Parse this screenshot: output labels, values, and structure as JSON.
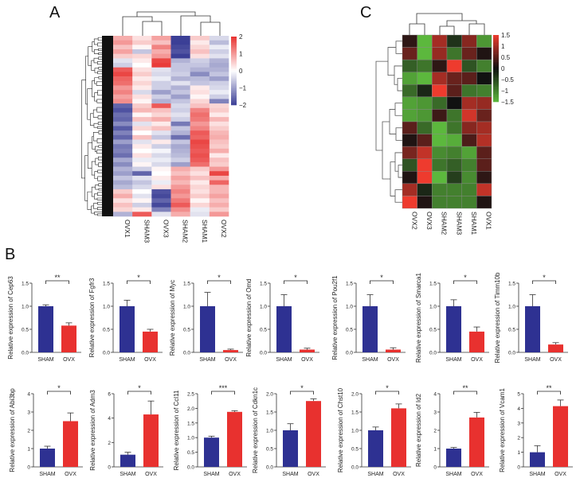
{
  "panels": {
    "a": "A",
    "b": "B",
    "c": "C"
  },
  "colors": {
    "heatmap_a_low": "#3b3f96",
    "heatmap_a_mid": "#ffffff",
    "heatmap_a_high": "#e8312f",
    "heatmap_c_low": "#5cb83d",
    "heatmap_c_mid": "#111111",
    "heatmap_c_high": "#ee3b2e",
    "sham_bar": "#2e3192",
    "ovx_bar": "#e8312f"
  },
  "chart_data": [
    {
      "type": "heatmap",
      "panel": "A",
      "columns": [
        "OVX1",
        "SHAM3",
        "OVX3",
        "SHAM2",
        "SHAM1",
        "OVX2"
      ],
      "colorbar_ticks": [
        2,
        1,
        0,
        -1,
        -2
      ],
      "range": [
        -2,
        2
      ],
      "row_dendrogram": true,
      "column_dendrogram": true,
      "values": [
        [
          0.8,
          0.3,
          0.9,
          -2,
          0.5,
          -0.4
        ],
        [
          1.0,
          0.5,
          0.6,
          -2,
          0.2,
          -0.7
        ],
        [
          0.6,
          0.1,
          1.2,
          -1.9,
          0.4,
          -0.2
        ],
        [
          0.9,
          -0.6,
          0.8,
          -1.8,
          0.6,
          -0.5
        ],
        [
          0.5,
          0.4,
          1.0,
          -2,
          0.3,
          -0.3
        ],
        [
          -0.3,
          0.2,
          1.8,
          -0.8,
          -0.5,
          -0.8
        ],
        [
          -0.5,
          0.0,
          1.9,
          -0.6,
          -0.6,
          -0.9
        ],
        [
          1.6,
          0.3,
          -0.3,
          -0.6,
          -0.8,
          -0.8
        ],
        [
          1.8,
          0.5,
          -0.4,
          -0.5,
          -1.2,
          -0.6
        ],
        [
          1.5,
          0.2,
          -0.2,
          -0.8,
          -0.7,
          -1.0
        ],
        [
          1.4,
          0.4,
          -0.5,
          -0.3,
          -0.6,
          -0.5
        ],
        [
          1.0,
          0.2,
          -0.5,
          -0.8,
          0.2,
          -0.4
        ],
        [
          1.2,
          -0.4,
          -1.0,
          -0.6,
          0.3,
          -0.2
        ],
        [
          0.9,
          0.3,
          -0.5,
          -1.0,
          0.1,
          -0.5
        ],
        [
          1.1,
          0.1,
          -0.8,
          -0.6,
          0.4,
          -1.3
        ],
        [
          -1.6,
          0.5,
          1.6,
          -0.4,
          0.6,
          0.4
        ],
        [
          -1.8,
          0.7,
          0.6,
          -0.5,
          1.2,
          0.5
        ],
        [
          -1.5,
          0.1,
          0.4,
          -0.3,
          1.4,
          0.2
        ],
        [
          -1.6,
          0.6,
          0.8,
          -0.5,
          1.3,
          0.7
        ],
        [
          -1.2,
          -0.3,
          0.2,
          -1.4,
          1.0,
          0.3
        ],
        [
          -1.7,
          0.4,
          0.6,
          -0.6,
          1.2,
          0.5
        ],
        [
          -1.3,
          0.0,
          -0.3,
          -0.8,
          1.6,
          0.7
        ],
        [
          -1.6,
          0.6,
          -0.6,
          -1.5,
          1.5,
          0.8
        ],
        [
          -1.0,
          -0.3,
          0.2,
          -0.6,
          1.8,
          0.6
        ],
        [
          -1.4,
          0.2,
          -0.5,
          -0.9,
          1.7,
          0.5
        ],
        [
          -1.3,
          0.0,
          -0.1,
          -0.8,
          1.6,
          0.8
        ],
        [
          -1.5,
          0.3,
          -0.4,
          -0.7,
          1.7,
          0.2
        ],
        [
          -0.9,
          -0.2,
          -0.2,
          -0.5,
          1.6,
          0.6
        ],
        [
          -1.2,
          0.1,
          -0.4,
          -1.0,
          1.4,
          0.5
        ],
        [
          -0.8,
          -0.5,
          0.1,
          0.8,
          0.5,
          1.0
        ],
        [
          -1.0,
          -1.6,
          0.0,
          0.6,
          0.3,
          1.8
        ],
        [
          -0.6,
          -0.3,
          0.2,
          0.9,
          0.6,
          0.8
        ],
        [
          -0.9,
          -0.6,
          -0.2,
          0.7,
          0.2,
          1.5
        ],
        [
          -0.7,
          -0.4,
          0.3,
          1.0,
          0.4,
          0.7
        ],
        [
          0.5,
          0.0,
          -1.8,
          1.2,
          0.3,
          0.7
        ],
        [
          0.8,
          -0.3,
          -1.9,
          1.0,
          0.5,
          0.9
        ],
        [
          0.3,
          0.1,
          -1.6,
          1.3,
          0.1,
          0.6
        ],
        [
          0.6,
          -0.5,
          -1.9,
          1.6,
          0.4,
          0.8
        ],
        [
          0.4,
          0.2,
          -1.3,
          1.1,
          -0.2,
          0.5
        ],
        [
          -0.8,
          1.6,
          -0.3,
          0.8,
          -0.3,
          1.0
        ]
      ]
    },
    {
      "type": "heatmap",
      "panel": "C",
      "columns": [
        "OVX2",
        "OVX3",
        "SHAM2",
        "SHAM3",
        "SHAM1",
        "OVX1"
      ],
      "colorbar_ticks": [
        1.5,
        1,
        0.5,
        0,
        -0.5,
        -1,
        -1.5
      ],
      "range": [
        -1.5,
        1.5
      ],
      "row_dendrogram": true,
      "column_dendrogram": true,
      "values": [
        [
          0.2,
          -1.6,
          1.0,
          -0.3,
          0.8,
          -1.2
        ],
        [
          0.6,
          -1.7,
          0.9,
          -0.9,
          0.6,
          0.1
        ],
        [
          -0.7,
          -0.9,
          0.2,
          1.7,
          -0.6,
          -1.0
        ],
        [
          -1.3,
          -1.6,
          1.0,
          0.6,
          0.5,
          0.0
        ],
        [
          -0.8,
          -0.2,
          1.6,
          0.5,
          -0.9,
          -1.0
        ],
        [
          -1.3,
          -1.2,
          -0.8,
          0.0,
          1.0,
          0.9
        ],
        [
          -1.3,
          -1.2,
          0.3,
          -0.9,
          1.3,
          0.6
        ],
        [
          0.5,
          -0.8,
          -1.6,
          -0.9,
          0.8,
          1.0
        ],
        [
          0.1,
          0.5,
          -1.5,
          -1.4,
          0.4,
          1.1
        ],
        [
          0.7,
          1.2,
          -1.1,
          -1.0,
          -1.3,
          0.5
        ],
        [
          -0.6,
          1.7,
          -0.9,
          -0.7,
          -1.0,
          0.5
        ],
        [
          0.1,
          1.7,
          -1.5,
          -0.4,
          -1.1,
          0.2
        ],
        [
          1.0,
          -0.2,
          -1.0,
          -1.0,
          -1.0,
          1.2
        ],
        [
          1.6,
          0.1,
          -1.0,
          -1.0,
          -1.0,
          0.1
        ]
      ]
    },
    {
      "type": "bar",
      "panel": "B",
      "ylabel": "Relative expression of Cep63",
      "categories": [
        "SHAM",
        "OVX"
      ],
      "values": [
        1.0,
        0.58
      ],
      "errors": [
        0.03,
        0.06
      ],
      "significance": "**",
      "ylim": [
        0,
        1.5
      ],
      "yticks": [
        "0.0",
        "0.5",
        "1.0",
        "1.5"
      ]
    },
    {
      "type": "bar",
      "panel": "B",
      "ylabel": "Relative expression of Fgfr3",
      "categories": [
        "SHAM",
        "OVX"
      ],
      "values": [
        1.0,
        0.45
      ],
      "errors": [
        0.13,
        0.05
      ],
      "significance": "*",
      "ylim": [
        0,
        1.5
      ],
      "yticks": [
        "0.0",
        "0.5",
        "1.0",
        "1.5"
      ]
    },
    {
      "type": "bar",
      "panel": "B",
      "ylabel": "Relative expression of Myc",
      "categories": [
        "SHAM",
        "OVX"
      ],
      "values": [
        1.0,
        0.05
      ],
      "errors": [
        0.3,
        0.02
      ],
      "significance": "*",
      "ylim": [
        0,
        1.5
      ],
      "yticks": [
        "0.0",
        "0.5",
        "1.0",
        "1.5"
      ]
    },
    {
      "type": "bar",
      "panel": "B",
      "ylabel": "Relative expression of Omd",
      "categories": [
        "SHAM",
        "OVX"
      ],
      "values": [
        1.0,
        0.06
      ],
      "errors": [
        0.25,
        0.03
      ],
      "significance": "*",
      "ylim": [
        0,
        1.5
      ],
      "yticks": [
        "0.0",
        "0.5",
        "1.0",
        "1.5"
      ]
    },
    {
      "type": "bar",
      "panel": "B",
      "ylabel": "Relative expression of Pou2f1",
      "categories": [
        "SHAM",
        "OVX"
      ],
      "values": [
        1.0,
        0.06
      ],
      "errors": [
        0.25,
        0.04
      ],
      "significance": "*",
      "ylim": [
        0,
        1.5
      ],
      "yticks": [
        "0.0",
        "0.5",
        "1.0",
        "1.5"
      ]
    },
    {
      "type": "bar",
      "panel": "B",
      "ylabel": "Relative expression of Smarca1",
      "categories": [
        "SHAM",
        "OVX"
      ],
      "values": [
        1.0,
        0.45
      ],
      "errors": [
        0.14,
        0.1
      ],
      "significance": "*",
      "ylim": [
        0,
        1.5
      ],
      "yticks": [
        "0.0",
        "0.5",
        "1.0",
        "1.5"
      ]
    },
    {
      "type": "bar",
      "panel": "B",
      "ylabel": "Relative expression of Timm10b",
      "categories": [
        "SHAM",
        "OVX"
      ],
      "values": [
        1.0,
        0.17
      ],
      "errors": [
        0.25,
        0.04
      ],
      "significance": "*",
      "ylim": [
        0,
        1.5
      ],
      "yticks": [
        "0.0",
        "0.5",
        "1.0",
        "1.5"
      ]
    },
    {
      "type": "bar",
      "panel": "B",
      "ylabel": "Relative expression of Abi3bp",
      "categories": [
        "SHAM",
        "OVX"
      ],
      "values": [
        1.0,
        2.5
      ],
      "errors": [
        0.13,
        0.45
      ],
      "significance": "*",
      "ylim": [
        0,
        4
      ],
      "yticks": [
        "0",
        "1",
        "2",
        "3",
        "4"
      ]
    },
    {
      "type": "bar",
      "panel": "B",
      "ylabel": "Relative expression of Adm3",
      "categories": [
        "SHAM",
        "OVX"
      ],
      "values": [
        1.0,
        4.3
      ],
      "errors": [
        0.2,
        1.1
      ],
      "significance": "*",
      "ylim": [
        0,
        6
      ],
      "yticks": [
        "0",
        "2",
        "4",
        "6"
      ]
    },
    {
      "type": "bar",
      "panel": "B",
      "ylabel": "Relative expression of Ccl11",
      "categories": [
        "SHAM",
        "OVX"
      ],
      "values": [
        1.0,
        1.88
      ],
      "errors": [
        0.05,
        0.04
      ],
      "significance": "***",
      "ylim": [
        0,
        2.5
      ],
      "yticks": [
        "0.0",
        "0.5",
        "1.0",
        "1.5",
        "2.0",
        "2.5"
      ]
    },
    {
      "type": "bar",
      "panel": "B",
      "ylabel": "Relative expression of Cdkn1c",
      "categories": [
        "SHAM",
        "OVX"
      ],
      "values": [
        1.0,
        1.8
      ],
      "errors": [
        0.18,
        0.06
      ],
      "significance": "*",
      "ylim": [
        0,
        2.0
      ],
      "yticks": [
        "0.0",
        "0.5",
        "1.0",
        "1.5",
        "2.0"
      ]
    },
    {
      "type": "bar",
      "panel": "B",
      "ylabel": "Relative expression of Chst10",
      "categories": [
        "SHAM",
        "OVX"
      ],
      "values": [
        1.0,
        1.6
      ],
      "errors": [
        0.09,
        0.12
      ],
      "significance": "*",
      "ylim": [
        0,
        2.0
      ],
      "yticks": [
        "0.0",
        "0.5",
        "1.0",
        "1.5",
        "2.0"
      ]
    },
    {
      "type": "bar",
      "panel": "B",
      "ylabel": "Relative expression of Id2",
      "categories": [
        "SHAM",
        "OVX"
      ],
      "values": [
        1.0,
        2.7
      ],
      "errors": [
        0.06,
        0.28
      ],
      "significance": "**",
      "ylim": [
        0,
        4
      ],
      "yticks": [
        "0",
        "1",
        "2",
        "3",
        "4"
      ]
    },
    {
      "type": "bar",
      "panel": "B",
      "ylabel": "Relative expression of Vcam1",
      "categories": [
        "SHAM",
        "OVX"
      ],
      "values": [
        1.0,
        4.15
      ],
      "errors": [
        0.45,
        0.42
      ],
      "significance": "**",
      "ylim": [
        0,
        5
      ],
      "yticks": [
        "0",
        "1",
        "2",
        "3",
        "4",
        "5"
      ]
    }
  ]
}
